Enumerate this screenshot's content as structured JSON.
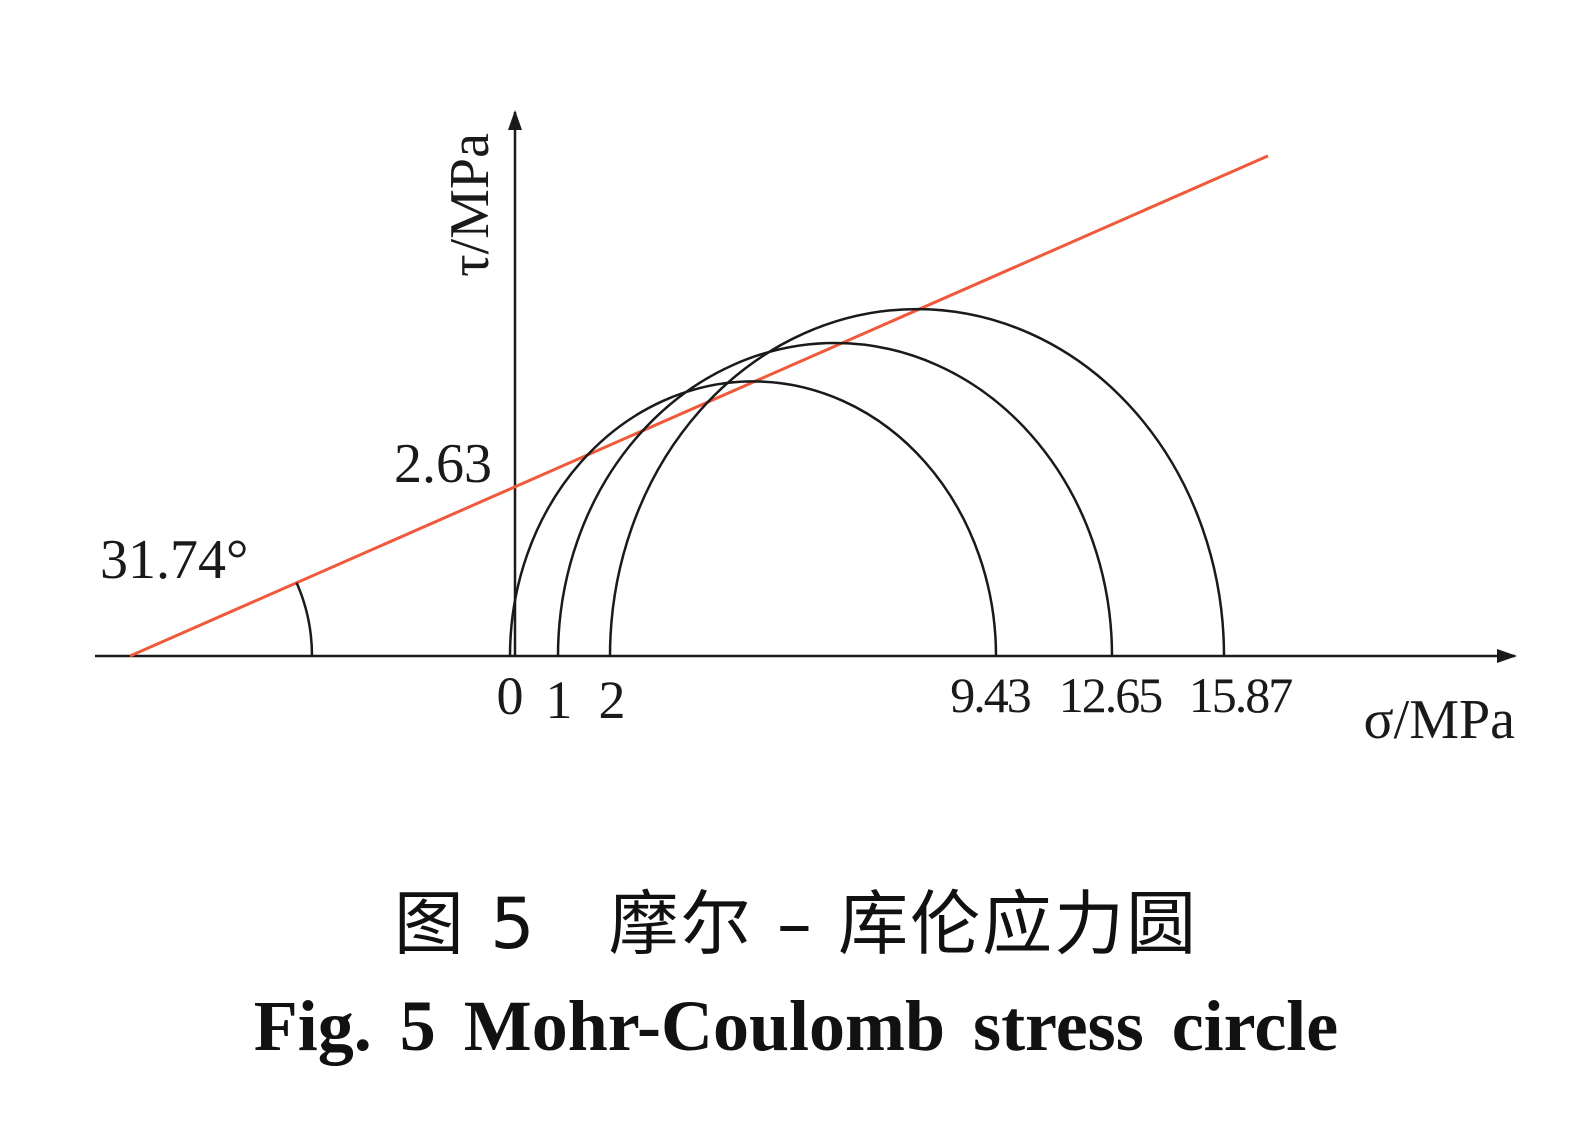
{
  "diagram": {
    "y_axis_label": "τ/MPa",
    "x_axis_label": "σ/MPa",
    "cohesion_label": "2.63",
    "angle_label": "31.74°",
    "origin_label": "0",
    "circles": [
      {
        "sigma3": 0,
        "sigma1": 9.43,
        "left_label": "0",
        "right_label": "9.43"
      },
      {
        "sigma3": 1,
        "sigma1": 12.65,
        "left_label": "1",
        "right_label": "12.65"
      },
      {
        "sigma3": 2,
        "sigma1": 15.87,
        "left_label": "2",
        "right_label": "15.87"
      }
    ],
    "failure_envelope": {
      "cohesion": 2.63,
      "friction_angle_deg": 31.74
    },
    "colors": {
      "envelope": "#f05a3c",
      "circles": "#1a1a1a",
      "axes": "#1a1a1a"
    }
  },
  "caption": {
    "cn": "图 5　摩尔 – 库伦应力圆",
    "en": "Fig.  5    Mohr-Coulomb stress circle"
  }
}
